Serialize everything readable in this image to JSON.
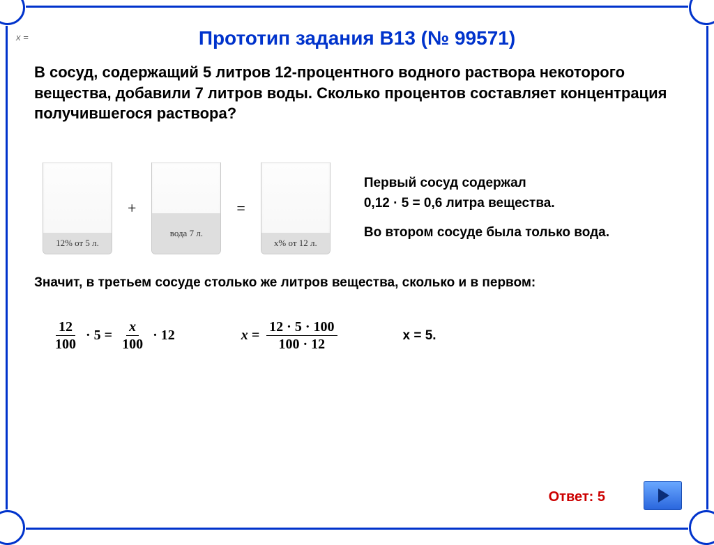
{
  "corner_label": "x =",
  "title": "Прототип задания B13 (№ 99571)",
  "problem": "В сосуд, содержащий 5 литров 12-процентного водного раствора некоторого вещества, добавили 7 литров воды. Сколько процентов составляет концентрация получившегося раствора?",
  "vessels": {
    "v1": {
      "label": "12% от 5 л.",
      "fill_pct": 23
    },
    "op1": "+",
    "v2": {
      "label": "вода 7 л.",
      "fill_pct": 45
    },
    "op2": "=",
    "v3": {
      "label": "x% от 12 л.",
      "fill_pct": 23
    }
  },
  "side": {
    "line1": "Первый сосуд содержал",
    "line2": "0,12 · 5 = 0,6 литра вещества.",
    "line3": "Во втором сосуде была только вода."
  },
  "mid": "Значит, в третьем сосуде столько же литров вещества, сколько и в первом:",
  "eq": {
    "f1_num": "12",
    "f1_den": "100",
    "mul1": "· 5 =",
    "f2_num": "x",
    "f2_den": "100",
    "mul2": "· 12",
    "xeq": "x =",
    "f3_num": "12 · 5 · 100",
    "f3_den": "100 · 12",
    "result": "x = 5."
  },
  "answer_label": "Ответ: 5",
  "colors": {
    "frame": "#0033cc",
    "title": "#0033cc",
    "answer": "#cc0000",
    "vessel_fill": "#dedede",
    "vessel_border": "#c9c9c9"
  }
}
